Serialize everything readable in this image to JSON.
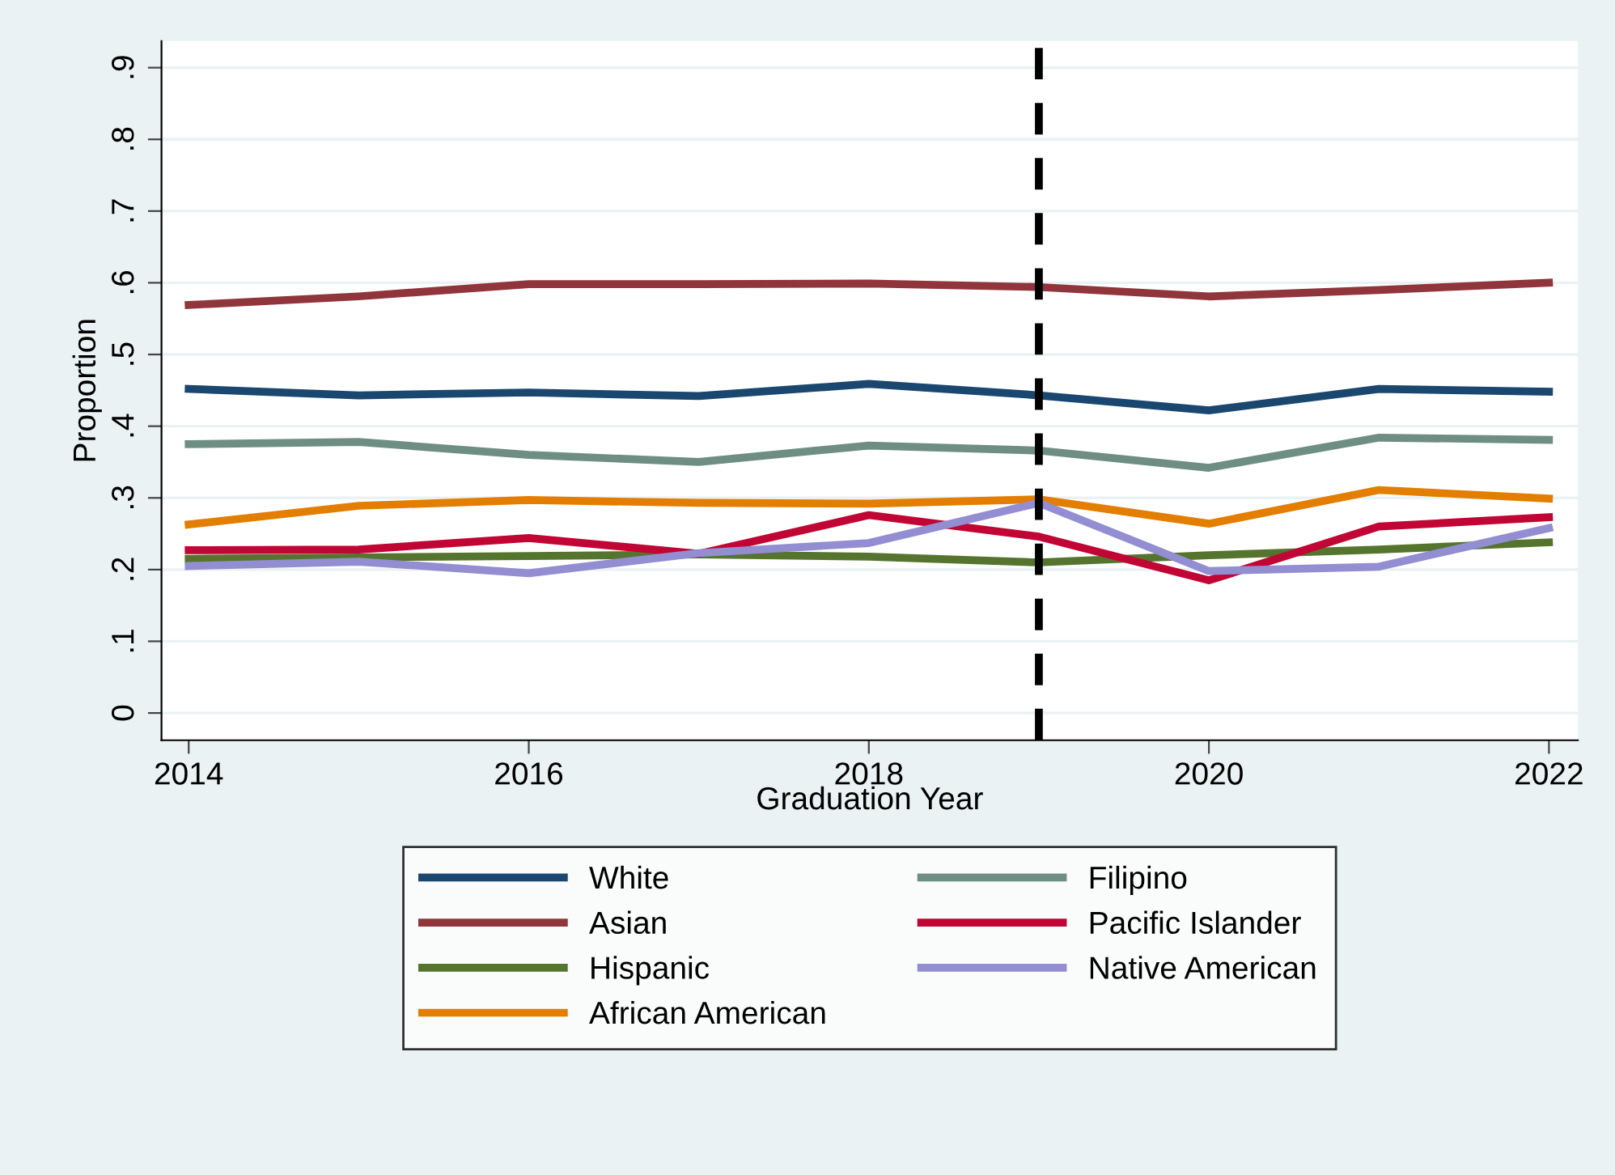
{
  "chart_data": {
    "type": "line",
    "xlabel": "Graduation Year",
    "ylabel": "Proportion",
    "x": [
      2014,
      2015,
      2016,
      2017,
      2018,
      2019,
      2020,
      2021,
      2022
    ],
    "series": [
      {
        "name": "White",
        "color": "#1a476f",
        "values": [
          0.452,
          0.443,
          0.447,
          0.442,
          0.459,
          0.443,
          0.422,
          0.452,
          0.448
        ]
      },
      {
        "name": "Asian",
        "color": "#90353b",
        "values": [
          0.569,
          0.581,
          0.598,
          0.598,
          0.599,
          0.594,
          0.581,
          0.59,
          0.6
        ]
      },
      {
        "name": "Hispanic",
        "color": "#55752f",
        "values": [
          0.215,
          0.217,
          0.219,
          0.221,
          0.218,
          0.21,
          0.22,
          0.228,
          0.238
        ]
      },
      {
        "name": "African American",
        "color": "#e37e00",
        "values": [
          0.263,
          0.289,
          0.297,
          0.293,
          0.292,
          0.298,
          0.264,
          0.311,
          0.299
        ]
      },
      {
        "name": "Filipino",
        "color": "#6e8e84",
        "values": [
          0.375,
          0.378,
          0.36,
          0.35,
          0.373,
          0.366,
          0.342,
          0.384,
          0.381
        ]
      },
      {
        "name": "Pacific Islander",
        "color": "#c10534",
        "values": [
          0.227,
          0.228,
          0.244,
          0.222,
          0.276,
          0.246,
          0.185,
          0.26,
          0.273
        ]
      },
      {
        "name": "Native American",
        "color": "#938dd2",
        "values": [
          0.205,
          0.211,
          0.195,
          0.223,
          0.237,
          0.293,
          0.198,
          0.204,
          0.258
        ]
      }
    ],
    "xlim": [
      2013.84,
      2022.17
    ],
    "xticks": [
      2014,
      2016,
      2018,
      2020,
      2022
    ],
    "ylim": [
      -0.038,
      0.937
    ],
    "yticks": [
      {
        "value": 0,
        "label": "0"
      },
      {
        "value": 0.1,
        "label": ".1"
      },
      {
        "value": 0.2,
        "label": ".2"
      },
      {
        "value": 0.3,
        "label": ".3"
      },
      {
        "value": 0.4,
        "label": ".4"
      },
      {
        "value": 0.5,
        "label": ".5"
      },
      {
        "value": 0.6,
        "label": ".6"
      },
      {
        "value": 0.7,
        "label": ".7"
      },
      {
        "value": 0.8,
        "label": ".8"
      },
      {
        "value": 0.9,
        "label": ".9"
      }
    ],
    "ref_lines": [
      {
        "axis": "x",
        "value": 2019,
        "color": "#000000",
        "line_style": "dashed"
      }
    ],
    "grid": "y",
    "legend": "bottom",
    "line_style": "solid",
    "marker": "none"
  }
}
